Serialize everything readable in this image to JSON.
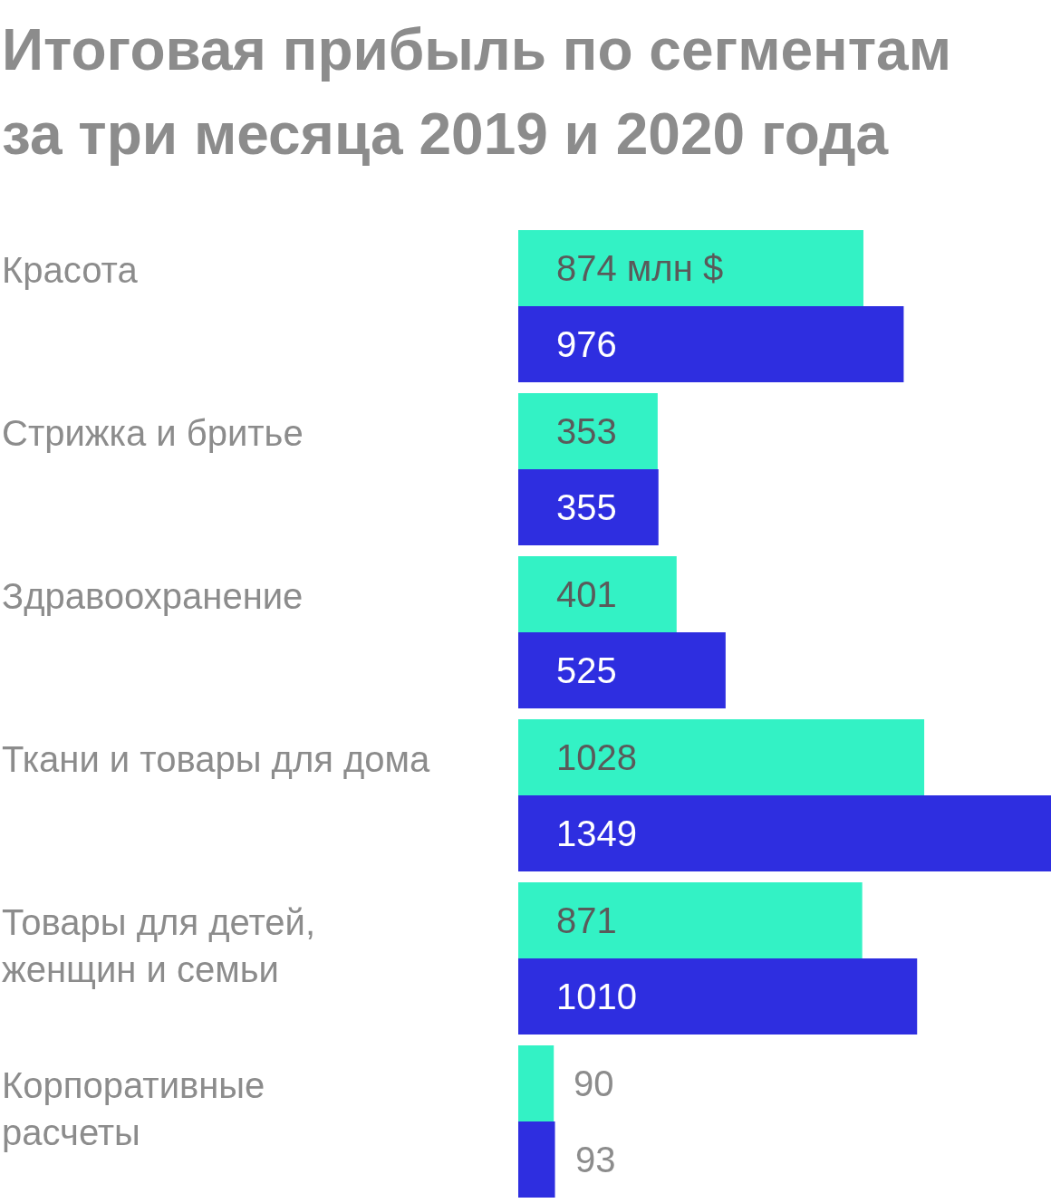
{
  "chart_data": {
    "type": "bar",
    "orientation": "horizontal",
    "title": "Итоговая прибыль по сегментам\nза три месяца 2019 и 2020 года",
    "categories": [
      "Красота",
      "Стрижка и бритье",
      "Здравоохранение",
      "Ткани и товары для дома",
      "Товары для детей,\nженщин и семьи",
      "Корпоративные\nрасчеты"
    ],
    "series": [
      {
        "color": "#33f2c5",
        "values": [
          874,
          353,
          401,
          1028,
          871,
          90
        ],
        "value_labels": [
          "874 млн $",
          "353",
          "401",
          "1028",
          "871",
          "90"
        ]
      },
      {
        "color": "#2e2ee0",
        "values": [
          976,
          355,
          525,
          1349,
          1010,
          93
        ],
        "value_labels": [
          "976",
          "355",
          "525",
          "1349",
          "1010",
          "93"
        ]
      }
    ],
    "xlim": [
      0,
      1349
    ],
    "grid": false,
    "legend": false
  }
}
